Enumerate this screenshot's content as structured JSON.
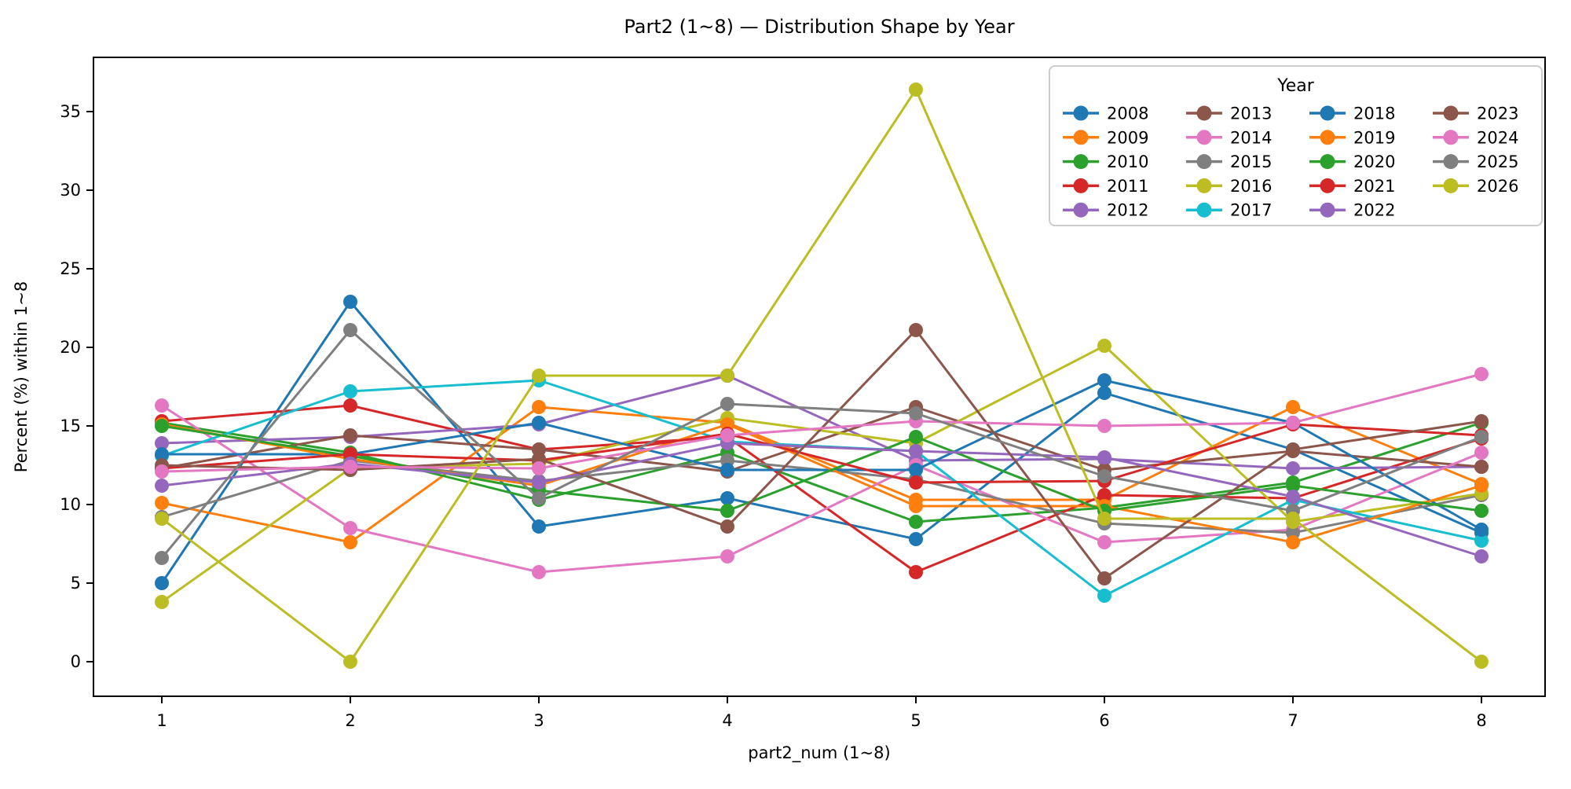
{
  "figure": {
    "title": "Part2 (1~8) — Distribution Shape by Year"
  },
  "chart_data": {
    "type": "line",
    "title": "Part2 (1~8) — Distribution Shape by Year",
    "xlabel": "part2_num (1~8)",
    "ylabel": "Percent (%) within 1~8",
    "x": [
      1,
      2,
      3,
      4,
      5,
      6,
      7,
      8
    ],
    "xticks": [
      "1",
      "2",
      "3",
      "4",
      "5",
      "6",
      "7",
      "8"
    ],
    "yticks": [
      0,
      5,
      10,
      15,
      20,
      25,
      30,
      35
    ],
    "xlim": [
      0.65,
      8.35
    ],
    "ylim": [
      -2.2,
      38.45
    ],
    "grid": false,
    "marker": "o",
    "legend": {
      "title": "Year",
      "position": "upper right",
      "columns": 4,
      "rows": 5
    },
    "series": [
      {
        "name": "2008",
        "color": "#1f77b4",
        "values": [
          5.0,
          22.9,
          8.6,
          10.4,
          7.8,
          17.1,
          13.5,
          8.2
        ]
      },
      {
        "name": "2009",
        "color": "#ff7f0e",
        "values": [
          10.1,
          7.6,
          16.2,
          15.2,
          10.3,
          10.3,
          16.2,
          11.3
        ]
      },
      {
        "name": "2010",
        "color": "#2ca02c",
        "values": [
          15.2,
          13.3,
          10.3,
          13.3,
          8.9,
          9.8,
          11.4,
          15.2
        ]
      },
      {
        "name": "2011",
        "color": "#d62728",
        "values": [
          15.3,
          16.3,
          13.5,
          14.3,
          5.7,
          10.6,
          10.4,
          14.2
        ]
      },
      {
        "name": "2012",
        "color": "#9467bd",
        "values": [
          13.9,
          14.3,
          15.1,
          18.2,
          12.8,
          12.9,
          12.3,
          12.4
        ]
      },
      {
        "name": "2013",
        "color": "#8c564b",
        "values": [
          12.3,
          14.4,
          13.5,
          12.1,
          16.2,
          12.2,
          13.4,
          12.4
        ]
      },
      {
        "name": "2014",
        "color": "#e377c2",
        "values": [
          16.3,
          8.5,
          5.7,
          6.7,
          12.5,
          7.6,
          8.4,
          13.3
        ]
      },
      {
        "name": "2015",
        "color": "#7f7f7f",
        "values": [
          9.2,
          12.8,
          11.5,
          12.8,
          11.6,
          8.8,
          8.2,
          10.6
        ]
      },
      {
        "name": "2016",
        "color": "#bcbd22",
        "values": [
          3.8,
          12.3,
          12.6,
          15.5,
          13.9,
          20.1,
          8.9,
          10.7
        ]
      },
      {
        "name": "2017",
        "color": "#17becf",
        "values": [
          13.1,
          17.2,
          17.9,
          14.0,
          13.4,
          4.2,
          10.3,
          7.7
        ]
      },
      {
        "name": "2018",
        "color": "#1f77b4",
        "values": [
          13.2,
          13.2,
          15.2,
          12.2,
          12.2,
          17.9,
          15.2,
          8.4
        ]
      },
      {
        "name": "2019",
        "color": "#ff7f0e",
        "values": [
          15.1,
          12.9,
          11.2,
          15.1,
          9.9,
          9.9,
          7.6,
          11.2
        ]
      },
      {
        "name": "2020",
        "color": "#2ca02c",
        "values": [
          15.0,
          13.1,
          10.9,
          9.6,
          14.3,
          9.6,
          11.2,
          9.6
        ]
      },
      {
        "name": "2021",
        "color": "#d62728",
        "values": [
          12.3,
          13.2,
          12.8,
          14.5,
          11.4,
          11.5,
          15.1,
          14.4
        ]
      },
      {
        "name": "2022",
        "color": "#9467bd",
        "values": [
          11.2,
          12.6,
          11.4,
          13.9,
          13.4,
          13.0,
          10.5,
          6.7
        ]
      },
      {
        "name": "2023",
        "color": "#8c564b",
        "values": [
          12.5,
          12.2,
          12.9,
          8.6,
          21.1,
          5.3,
          13.5,
          15.3
        ]
      },
      {
        "name": "2024",
        "color": "#e377c2",
        "values": [
          12.1,
          12.4,
          12.3,
          14.4,
          15.3,
          15.0,
          15.2,
          18.3
        ]
      },
      {
        "name": "2025",
        "color": "#7f7f7f",
        "values": [
          6.6,
          21.1,
          10.4,
          16.4,
          15.8,
          11.8,
          9.6,
          14.3
        ]
      },
      {
        "name": "2026",
        "color": "#bcbd22",
        "values": [
          9.1,
          0.0,
          18.2,
          18.2,
          36.4,
          9.1,
          9.1,
          0.0
        ]
      }
    ]
  }
}
